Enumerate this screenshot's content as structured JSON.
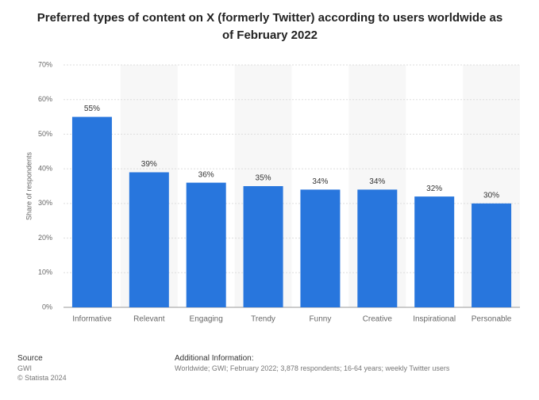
{
  "chart_data": {
    "type": "bar",
    "title": "Preferred types of content on X (formerly Twitter) according to users worldwide as of February 2022",
    "y_label": "Share of respondents",
    "categories": [
      "Informative",
      "Relevant",
      "Engaging",
      "Trendy",
      "Funny",
      "Creative",
      "Inspirational",
      "Personable"
    ],
    "values": [
      55,
      39,
      36,
      35,
      34,
      34,
      32,
      30
    ],
    "value_labels": [
      "55%",
      "39%",
      "36%",
      "35%",
      "34%",
      "34%",
      "32%",
      "30%"
    ],
    "color": "#2876dd",
    "ylim": [
      0,
      70
    ],
    "yticks": [
      {
        "value": 0,
        "label": "0%"
      },
      {
        "value": 10,
        "label": "10%"
      },
      {
        "value": 20,
        "label": "20%"
      },
      {
        "value": 30,
        "label": "30%"
      },
      {
        "value": 40,
        "label": "40%"
      },
      {
        "value": 50,
        "label": "50%"
      },
      {
        "value": 60,
        "label": "60%"
      },
      {
        "value": 70,
        "label": "70%"
      }
    ],
    "grid": true,
    "source_label": "Source",
    "source": "GWI",
    "copyright": "© Statista 2024",
    "additional_info_label": "Additional Information:",
    "additional_info": "Worldwide; GWI; February 2022; 3,878 respondents; 16-64 years; weekly Twitter users"
  }
}
